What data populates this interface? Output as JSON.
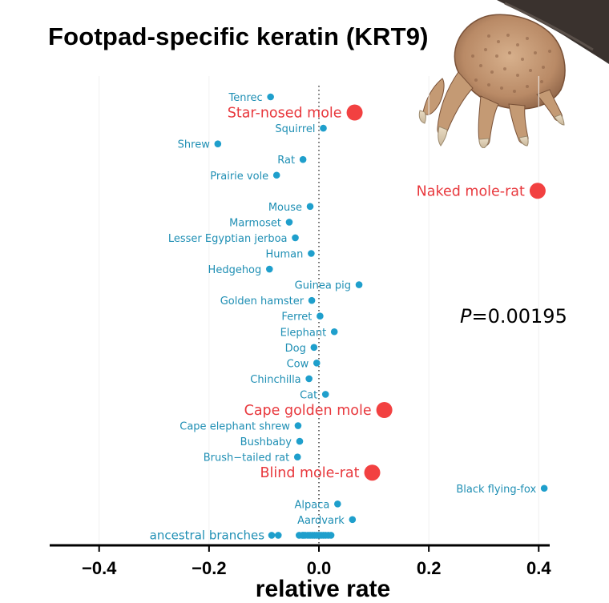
{
  "chart_data": {
    "type": "scatter",
    "title": "Footpad-specific keratin (KRT9)",
    "xlabel": "relative rate",
    "ylabel": "",
    "xlim": [
      -0.49,
      0.42
    ],
    "xticks": [
      -0.4,
      -0.2,
      0.0,
      0.2,
      0.4
    ],
    "xtick_labels": [
      "−0.4",
      "−0.2",
      "0.0",
      "0.2",
      "0.4"
    ],
    "reference_line_x": 0.0,
    "annotation": {
      "p_symbol": "P",
      "p_value": "=0.00195"
    },
    "colors": {
      "subterranean": "#f24141",
      "other": "#1f9fcc",
      "label_subterranean": "#e8383d",
      "label_other": "#1f8fb4"
    },
    "points": [
      {
        "label": "Tenrec",
        "x": -0.088,
        "highlight": false
      },
      {
        "label": "Star-nosed mole",
        "x": 0.065,
        "highlight": true
      },
      {
        "label": "Squirrel",
        "x": 0.008,
        "highlight": false
      },
      {
        "label": "Shrew",
        "x": -0.184,
        "highlight": false
      },
      {
        "label": "Rat",
        "x": -0.029,
        "highlight": false
      },
      {
        "label": "Prairie vole",
        "x": -0.077,
        "highlight": false
      },
      {
        "label": "Naked mole-rat",
        "x": 0.398,
        "highlight": true
      },
      {
        "label": "Mouse",
        "x": -0.016,
        "highlight": false
      },
      {
        "label": "Marmoset",
        "x": -0.054,
        "highlight": false
      },
      {
        "label": "Lesser Egyptian jerboa",
        "x": -0.043,
        "highlight": false
      },
      {
        "label": "Human",
        "x": -0.014,
        "highlight": false
      },
      {
        "label": "Hedgehog",
        "x": -0.09,
        "highlight": false
      },
      {
        "label": "Guinea pig",
        "x": 0.073,
        "highlight": false
      },
      {
        "label": "Golden hamster",
        "x": -0.013,
        "highlight": false
      },
      {
        "label": "Ferret",
        "x": 0.002,
        "highlight": false
      },
      {
        "label": "Elephant",
        "x": 0.028,
        "highlight": false
      },
      {
        "label": "Dog",
        "x": -0.009,
        "highlight": false
      },
      {
        "label": "Cow",
        "x": -0.004,
        "highlight": false
      },
      {
        "label": "Chinchilla",
        "x": -0.018,
        "highlight": false
      },
      {
        "label": "Cat",
        "x": 0.012,
        "highlight": false
      },
      {
        "label": "Cape golden mole",
        "x": 0.119,
        "highlight": true
      },
      {
        "label": "Cape elephant shrew",
        "x": -0.038,
        "highlight": false
      },
      {
        "label": "Bushbaby",
        "x": -0.035,
        "highlight": false
      },
      {
        "label": "Brush−tailed rat",
        "x": -0.039,
        "highlight": false
      },
      {
        "label": "Blind mole-rat",
        "x": 0.097,
        "highlight": true
      },
      {
        "label": "Black flying-fox",
        "x": 0.41,
        "highlight": false
      },
      {
        "label": "Alpaca",
        "x": 0.034,
        "highlight": false
      },
      {
        "label": "Aardvark",
        "x": 0.061,
        "highlight": false
      }
    ],
    "ancestral_branches": {
      "label": "ancestral branches",
      "x": [
        -0.086,
        -0.074,
        -0.036,
        -0.03,
        -0.025,
        -0.02,
        -0.016,
        -0.012,
        -0.008,
        -0.004,
        0.0,
        0.004,
        0.008,
        0.012,
        0.017,
        -0.028,
        0.022
      ]
    }
  }
}
